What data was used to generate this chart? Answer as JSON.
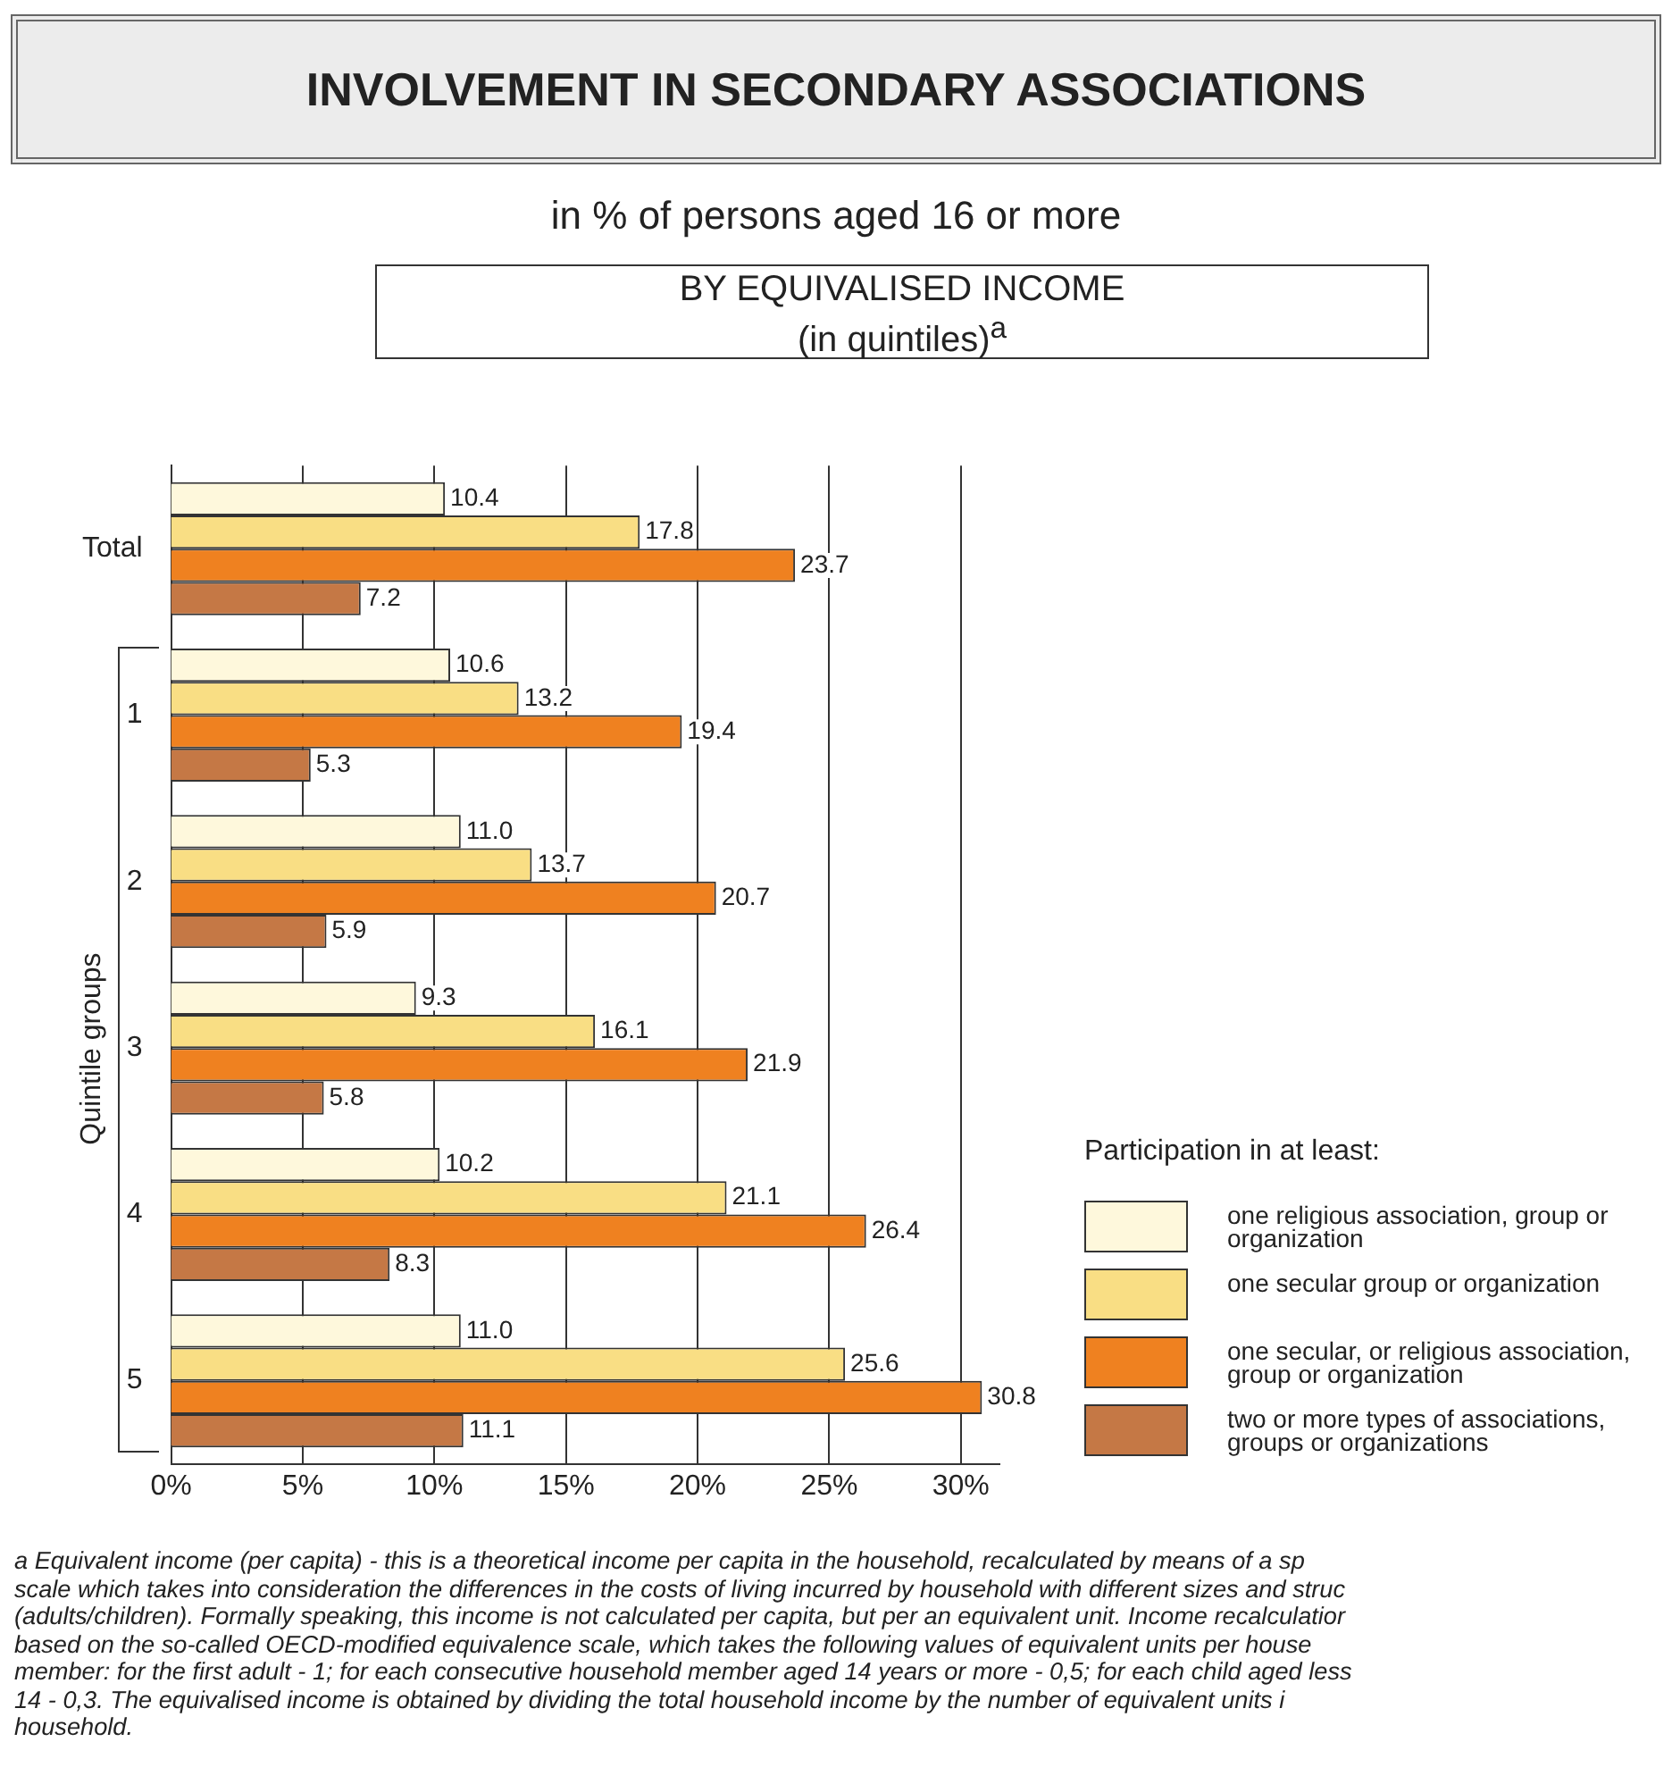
{
  "chart_data": {
    "type": "bar",
    "orientation": "horizontal",
    "title": "INVOLVEMENT IN SECONDARY ASSOCIATIONS",
    "subtitle": "in % of persons aged 16 or more",
    "categories": [
      "Total",
      "1",
      "2",
      "3",
      "4",
      "5"
    ],
    "ylabel": "Quintile groups",
    "legend_title": "Participation in at least:",
    "series": [
      {
        "name": "one religious association, group or organization",
        "color": "#fef8dc",
        "values": [
          10.4,
          10.6,
          11.0,
          9.3,
          10.2,
          11.0
        ],
        "value_labels": [
          "10.4",
          "10.6",
          "11.0",
          "9.3",
          "10.2",
          "11.0"
        ]
      },
      {
        "name": "one secular group or organization",
        "color": "#f9de84",
        "values": [
          17.8,
          13.2,
          13.7,
          16.1,
          21.1,
          25.6
        ],
        "value_labels": [
          "17.8",
          "13.2",
          "13.7",
          "16.1",
          "21.1",
          "25.6"
        ]
      },
      {
        "name": "one secular, or religious association, group or organization",
        "color": "#ef8120",
        "values": [
          23.7,
          19.4,
          20.7,
          21.9,
          26.4,
          30.8
        ],
        "value_labels": [
          "23.7",
          "19.4",
          "20.7",
          "21.9",
          "26.4",
          "30.8"
        ]
      },
      {
        "name": "two or more types of associations, groups or organizations",
        "color": "#c57845",
        "values": [
          7.2,
          5.3,
          5.9,
          5.8,
          8.3,
          11.1
        ],
        "value_labels": [
          "7.2",
          "5.3",
          "5.9",
          "5.8",
          "8.3",
          "11.1"
        ]
      }
    ],
    "xlim": [
      0,
      31.5
    ],
    "xticks": [
      {
        "value": 0,
        "label": "0%"
      },
      {
        "value": 5,
        "label": "5%"
      },
      {
        "value": 10,
        "label": "10%"
      },
      {
        "value": 15,
        "label": "15%"
      },
      {
        "value": 20,
        "label": "20%"
      },
      {
        "value": 25,
        "label": "25%"
      },
      {
        "value": 30,
        "label": "30%"
      }
    ],
    "grid": "x",
    "legend": "right",
    "annotations": [
      "BY EQUIVALISED INCOME\n(in quintiles)$^{a}$",
      "a Equivalent income (per capita) - this is a theoretical income per capita in the household, recalculated by means of a sp\nscale which takes into consideration the differences in the costs of living incurred by household with different sizes and struc\n(adults/children). Formally speaking, this income is not calculated per capita, but per an equivalent unit. Income recalculatior\nbased on the so-called OECD-modified equivalence scale, which takes the following values of equivalent units per house\nmember: for the first adult - 1; for each consecutive household member aged 14 years or more - 0,5; for each child aged less\n14 - 0,3. The equivalised income is obtained by dividing the total household income by the number of equivalent units i\nhousehold."
    ]
  }
}
